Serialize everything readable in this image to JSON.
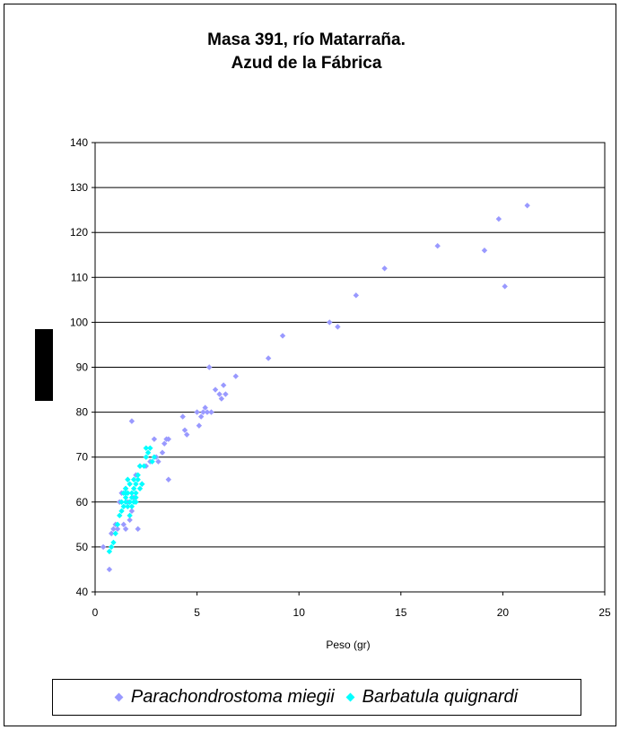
{
  "chart_data": {
    "type": "scatter",
    "title_line1": "Masa 391, río Matarraña.",
    "title_line2": "Azud de la Fábrica",
    "xlabel": "Peso (gr)",
    "ylabel": "",
    "xlim": [
      0,
      25
    ],
    "ylim": [
      40,
      140
    ],
    "x_ticks": [
      "0",
      "5",
      "10",
      "15",
      "20",
      "25"
    ],
    "y_ticks": [
      "40",
      "50",
      "60",
      "70",
      "80",
      "90",
      "100",
      "110",
      "120",
      "130",
      "140"
    ],
    "grid": "horizontal",
    "legend_position": "bottom",
    "series": [
      {
        "name": "Parachondrostoma miegii",
        "color": "#9999ff",
        "x": [
          0.4,
          0.7,
          0.8,
          0.9,
          1.0,
          1.1,
          1.3,
          1.4,
          1.5,
          1.6,
          1.7,
          1.8,
          1.8,
          2.0,
          2.1,
          2.2,
          2.5,
          2.7,
          2.9,
          3.1,
          3.3,
          3.4,
          3.5,
          3.6,
          3.6,
          4.3,
          4.4,
          4.5,
          5.0,
          5.1,
          5.2,
          5.3,
          5.4,
          5.5,
          5.6,
          5.7,
          5.9,
          6.1,
          6.2,
          6.3,
          6.4,
          6.9,
          8.5,
          9.2,
          11.5,
          11.9,
          12.8,
          14.2,
          16.8,
          19.1,
          19.8,
          20.1,
          21.2,
          1.2,
          1.5,
          1.9,
          2.3,
          3.0
        ],
        "y": [
          50,
          45,
          53,
          54,
          55,
          54,
          62,
          55,
          54,
          60,
          56,
          78,
          58,
          66,
          54,
          68,
          68,
          69,
          74,
          69,
          71,
          73,
          74,
          74,
          65,
          79,
          76,
          75,
          80,
          77,
          79,
          80,
          81,
          80,
          90,
          80,
          85,
          84,
          83,
          86,
          84,
          88,
          92,
          97,
          100,
          99,
          106,
          112,
          117,
          116,
          123,
          108,
          126,
          60,
          63,
          61,
          64,
          70
        ]
      },
      {
        "name": "Barbatula quignardi",
        "color": "#00ffff",
        "x": [
          0.7,
          0.8,
          0.9,
          1.0,
          1.1,
          1.2,
          1.3,
          1.3,
          1.4,
          1.4,
          1.5,
          1.5,
          1.5,
          1.6,
          1.6,
          1.6,
          1.7,
          1.7,
          1.7,
          1.8,
          1.8,
          1.8,
          1.9,
          1.9,
          1.9,
          2.0,
          2.0,
          2.0,
          2.1,
          2.1,
          2.2,
          2.2,
          2.3,
          2.4,
          2.5,
          2.5,
          2.6,
          2.7,
          2.8,
          2.9,
          1.5,
          1.7,
          2.0
        ],
        "y": [
          49,
          50,
          51,
          53,
          55,
          57,
          58,
          60,
          59,
          62,
          60,
          61,
          63,
          59,
          62,
          65,
          57,
          60,
          64,
          59,
          61,
          62,
          60,
          63,
          65,
          61,
          62,
          64,
          65,
          66,
          63,
          68,
          64,
          68,
          70,
          72,
          71,
          72,
          69,
          70,
          62,
          60,
          60
        ]
      }
    ]
  }
}
